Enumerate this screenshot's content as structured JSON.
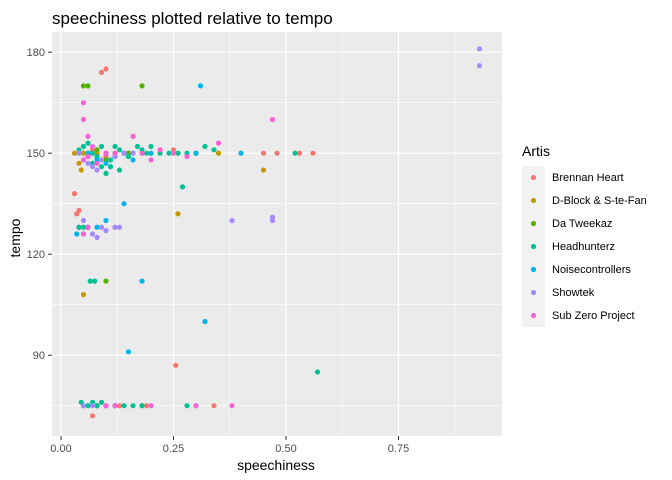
{
  "chart_data": {
    "type": "scatter",
    "title": "speechiness plotted relative to tempo",
    "xlabel": "speechiness",
    "ylabel": "tempo",
    "xlim": [
      -0.02,
      0.98
    ],
    "ylim": [
      66,
      186
    ],
    "x_ticks": [
      0.0,
      0.25,
      0.5,
      0.75
    ],
    "x_tick_labels": [
      "0.00",
      "0.25",
      "0.50",
      "0.75"
    ],
    "y_ticks": [
      90,
      120,
      150,
      180
    ],
    "y_tick_labels": [
      "90",
      "120",
      "150",
      "180"
    ],
    "grid": true,
    "legend": {
      "title": "Artis",
      "position": "right"
    },
    "series": [
      {
        "name": "Brennan Heart",
        "color": "#F8766D",
        "points": [
          [
            0.03,
            138
          ],
          [
            0.035,
            132
          ],
          [
            0.04,
            133
          ],
          [
            0.04,
            128
          ],
          [
            0.05,
            150
          ],
          [
            0.07,
            151
          ],
          [
            0.08,
            150
          ],
          [
            0.1,
            149
          ],
          [
            0.12,
            150
          ],
          [
            0.15,
            150
          ],
          [
            0.18,
            150
          ],
          [
            0.2,
            150
          ],
          [
            0.25,
            151
          ],
          [
            0.3,
            150
          ],
          [
            0.35,
            150
          ],
          [
            0.4,
            150
          ],
          [
            0.45,
            150
          ],
          [
            0.48,
            150
          ],
          [
            0.53,
            150
          ],
          [
            0.56,
            150
          ],
          [
            0.09,
            174
          ],
          [
            0.1,
            175
          ],
          [
            0.255,
            87
          ],
          [
            0.07,
            75
          ],
          [
            0.1,
            75
          ],
          [
            0.13,
            75
          ],
          [
            0.19,
            75
          ],
          [
            0.34,
            75
          ],
          [
            0.07,
            72
          ]
        ]
      },
      {
        "name": "D-Block & S-te-Fan",
        "color": "#C49A00",
        "points": [
          [
            0.03,
            150
          ],
          [
            0.05,
            150
          ],
          [
            0.06,
            149
          ],
          [
            0.08,
            150
          ],
          [
            0.1,
            150
          ],
          [
            0.12,
            150
          ],
          [
            0.15,
            150
          ],
          [
            0.2,
            150
          ],
          [
            0.25,
            150
          ],
          [
            0.3,
            150
          ],
          [
            0.35,
            150
          ],
          [
            0.04,
            147
          ],
          [
            0.045,
            145
          ],
          [
            0.26,
            132
          ],
          [
            0.45,
            145
          ],
          [
            0.05,
            108
          ],
          [
            0.05,
            75
          ],
          [
            0.1,
            75
          ],
          [
            0.18,
            75
          ]
        ]
      },
      {
        "name": "Da Tweekaz",
        "color": "#53B400",
        "points": [
          [
            0.05,
            170
          ],
          [
            0.06,
            170
          ],
          [
            0.18,
            170
          ],
          [
            0.04,
            150
          ],
          [
            0.06,
            150
          ],
          [
            0.08,
            151
          ],
          [
            0.1,
            148
          ],
          [
            0.15,
            150
          ],
          [
            0.1,
            112
          ],
          [
            0.05,
            75
          ],
          [
            0.08,
            75
          ],
          [
            0.12,
            75
          ]
        ]
      },
      {
        "name": "Headhunterz",
        "color": "#00C094",
        "points": [
          [
            0.04,
            151
          ],
          [
            0.05,
            152
          ],
          [
            0.06,
            153
          ],
          [
            0.07,
            150
          ],
          [
            0.08,
            149
          ],
          [
            0.09,
            152
          ],
          [
            0.1,
            150
          ],
          [
            0.11,
            148
          ],
          [
            0.12,
            152
          ],
          [
            0.13,
            151
          ],
          [
            0.14,
            150
          ],
          [
            0.15,
            149
          ],
          [
            0.16,
            150
          ],
          [
            0.17,
            152
          ],
          [
            0.18,
            151
          ],
          [
            0.19,
            150
          ],
          [
            0.2,
            152
          ],
          [
            0.22,
            150
          ],
          [
            0.24,
            150
          ],
          [
            0.26,
            150
          ],
          [
            0.28,
            150
          ],
          [
            0.3,
            150
          ],
          [
            0.32,
            152
          ],
          [
            0.34,
            151
          ],
          [
            0.52,
            150
          ],
          [
            0.05,
            148
          ],
          [
            0.07,
            147
          ],
          [
            0.09,
            146
          ],
          [
            0.1,
            144
          ],
          [
            0.11,
            146
          ],
          [
            0.13,
            145
          ],
          [
            0.27,
            140
          ],
          [
            0.04,
            128
          ],
          [
            0.05,
            128
          ],
          [
            0.06,
            128
          ],
          [
            0.065,
            112
          ],
          [
            0.075,
            112
          ],
          [
            0.045,
            76
          ],
          [
            0.06,
            75
          ],
          [
            0.07,
            76
          ],
          [
            0.08,
            75
          ],
          [
            0.09,
            76
          ],
          [
            0.1,
            75
          ],
          [
            0.12,
            75
          ],
          [
            0.14,
            75
          ],
          [
            0.16,
            75
          ],
          [
            0.18,
            75
          ],
          [
            0.28,
            75
          ],
          [
            0.3,
            75
          ],
          [
            0.57,
            85
          ]
        ]
      },
      {
        "name": "Noisecontrollers",
        "color": "#00B6EB",
        "points": [
          [
            0.31,
            170
          ],
          [
            0.035,
            126
          ],
          [
            0.05,
            126
          ],
          [
            0.06,
            128
          ],
          [
            0.08,
            128
          ],
          [
            0.1,
            130
          ],
          [
            0.14,
            135
          ],
          [
            0.18,
            112
          ],
          [
            0.32,
            100
          ],
          [
            0.15,
            91
          ],
          [
            0.06,
            150
          ],
          [
            0.08,
            148
          ],
          [
            0.1,
            147
          ],
          [
            0.12,
            149
          ],
          [
            0.14,
            150
          ],
          [
            0.16,
            148
          ],
          [
            0.2,
            150
          ],
          [
            0.3,
            150
          ],
          [
            0.4,
            150
          ]
        ]
      },
      {
        "name": "Showtek",
        "color": "#A58AFF",
        "points": [
          [
            0.93,
            181
          ],
          [
            0.93,
            176
          ],
          [
            0.04,
            150
          ],
          [
            0.05,
            148
          ],
          [
            0.06,
            147
          ],
          [
            0.07,
            146
          ],
          [
            0.08,
            145
          ],
          [
            0.09,
            148
          ],
          [
            0.1,
            150
          ],
          [
            0.12,
            149
          ],
          [
            0.14,
            150
          ],
          [
            0.16,
            150
          ],
          [
            0.05,
            130
          ],
          [
            0.06,
            128
          ],
          [
            0.07,
            126
          ],
          [
            0.08,
            125
          ],
          [
            0.09,
            128
          ],
          [
            0.1,
            127
          ],
          [
            0.12,
            128
          ],
          [
            0.13,
            128
          ],
          [
            0.38,
            130
          ],
          [
            0.47,
            131
          ],
          [
            0.47,
            130
          ],
          [
            0.05,
            75
          ],
          [
            0.07,
            75
          ]
        ]
      },
      {
        "name": "Sub Zero Project",
        "color": "#FB61D7",
        "points": [
          [
            0.05,
            165
          ],
          [
            0.05,
            160
          ],
          [
            0.47,
            160
          ],
          [
            0.06,
            155
          ],
          [
            0.16,
            155
          ],
          [
            0.07,
            152
          ],
          [
            0.12,
            150
          ],
          [
            0.18,
            150
          ],
          [
            0.2,
            148
          ],
          [
            0.22,
            151
          ],
          [
            0.25,
            150
          ],
          [
            0.28,
            149
          ],
          [
            0.35,
            153
          ],
          [
            0.05,
            148
          ],
          [
            0.06,
            149
          ],
          [
            0.08,
            147
          ],
          [
            0.1,
            150
          ],
          [
            0.05,
            126
          ],
          [
            0.06,
            128
          ],
          [
            0.1,
            75
          ],
          [
            0.12,
            75
          ],
          [
            0.2,
            75
          ],
          [
            0.3,
            75
          ],
          [
            0.38,
            75
          ]
        ]
      }
    ]
  }
}
